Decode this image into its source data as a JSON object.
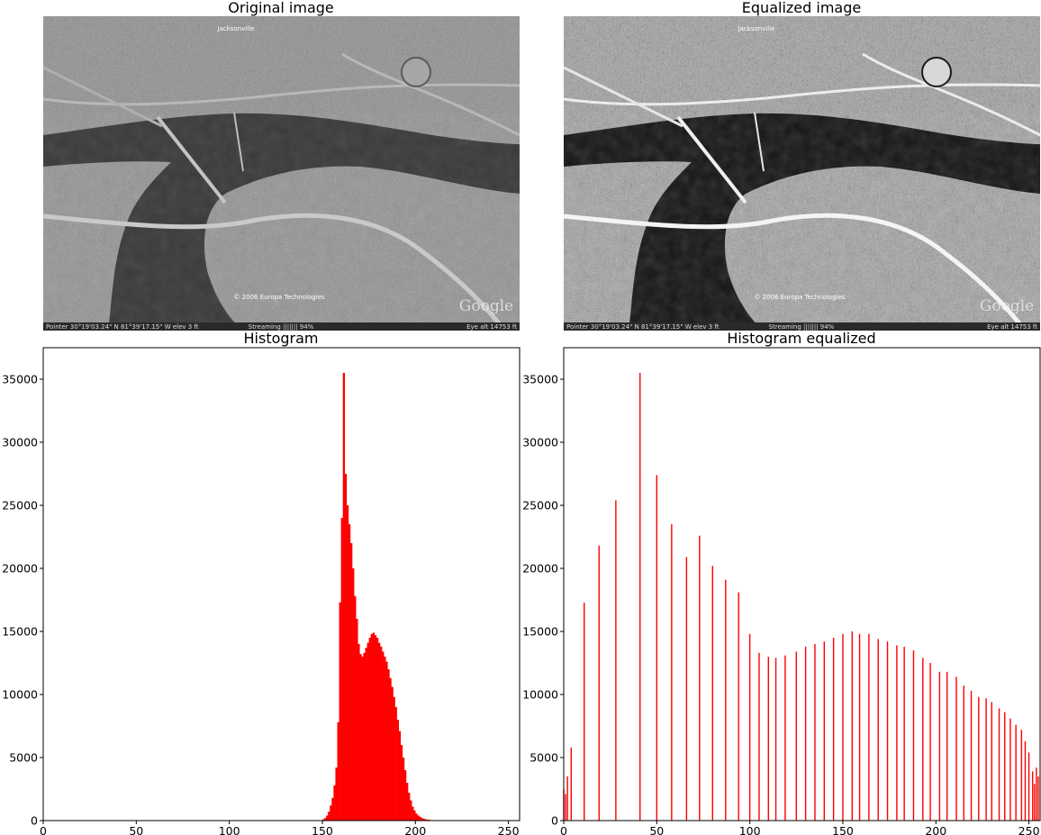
{
  "panels": {
    "original": {
      "title": "Original image",
      "overlay": {
        "city_label": "Jacksonville",
        "copyright": "© 2006 Europa Technologies",
        "brand": "Google",
        "status_pointer": "Pointer   30°19'03.24\"   N   81°39'17.15\"   W   elev   3 ft",
        "status_streaming": "Streaming |||||||   94%",
        "status_eye": "Eye alt   14753 ft"
      }
    },
    "equalized": {
      "title": "Equalized image",
      "overlay": {
        "city_label": "Jacksonville",
        "copyright": "© 2006 Europa Technologies",
        "brand": "Google",
        "status_pointer": "Pointer   30°19'03.24\"   N   81°39'17.15\"   W   elev   3 ft",
        "status_streaming": "Streaming |||||||   94%",
        "status_eye": "Eye alt   14753 ft"
      }
    }
  },
  "colors": {
    "bar": "#ff0000",
    "axes": "#000000",
    "background": "#ffffff"
  },
  "chart_data": [
    {
      "type": "bar",
      "title": "Histogram",
      "xlabel": "",
      "ylabel": "",
      "xlim": [
        0,
        256
      ],
      "ylim": [
        0,
        37500
      ],
      "xticks": [
        0,
        50,
        100,
        150,
        200,
        250
      ],
      "yticks": [
        0,
        5000,
        10000,
        15000,
        20000,
        25000,
        30000,
        35000
      ],
      "grid": false,
      "bar_width": 1,
      "x": [
        150,
        151,
        152,
        153,
        154,
        155,
        156,
        157,
        158,
        159,
        160,
        161,
        162,
        163,
        164,
        165,
        166,
        167,
        168,
        169,
        170,
        171,
        172,
        173,
        174,
        175,
        176,
        177,
        178,
        179,
        180,
        181,
        182,
        183,
        184,
        185,
        186,
        187,
        188,
        189,
        190,
        191,
        192,
        193,
        194,
        195,
        196,
        197,
        198,
        199,
        200,
        201,
        202,
        203,
        204,
        205,
        206,
        207,
        208,
        209,
        210,
        211,
        212,
        213,
        214,
        215,
        216,
        217
      ],
      "values": [
        100,
        200,
        400,
        700,
        1200,
        1800,
        2800,
        4200,
        7800,
        17300,
        24000,
        35500,
        27500,
        25000,
        23500,
        22000,
        20000,
        17800,
        16000,
        14000,
        13200,
        13000,
        13300,
        13700,
        14100,
        14500,
        14800,
        14900,
        14700,
        14500,
        14100,
        13800,
        13400,
        13000,
        12600,
        12000,
        11300,
        10600,
        9800,
        9000,
        8000,
        7100,
        6000,
        5000,
        4000,
        3000,
        2200,
        1600,
        1100,
        800,
        550,
        400,
        300,
        200,
        150,
        100,
        80,
        60,
        40,
        30,
        20,
        15,
        10,
        8,
        5,
        3,
        2,
        1
      ]
    },
    {
      "type": "bar",
      "title": "Histogram equalized",
      "xlabel": "",
      "ylabel": "",
      "xlim": [
        0,
        256
      ],
      "ylim": [
        0,
        37500
      ],
      "xticks": [
        0,
        50,
        100,
        150,
        200,
        250
      ],
      "yticks": [
        0,
        5000,
        10000,
        15000,
        20000,
        25000,
        30000,
        35000
      ],
      "grid": false,
      "bar_width": 1,
      "x": [
        0,
        1,
        2,
        4,
        11,
        19,
        28,
        41,
        50,
        58,
        66,
        73,
        80,
        87,
        94,
        100,
        105,
        110,
        114,
        119,
        125,
        130,
        135,
        140,
        145,
        150,
        155,
        159,
        164,
        169,
        174,
        179,
        183,
        188,
        193,
        197,
        202,
        206,
        211,
        215,
        219,
        223,
        227,
        230,
        234,
        237,
        240,
        243,
        246,
        248,
        250,
        252,
        253,
        254,
        255
      ],
      "values": [
        2500,
        2100,
        3500,
        5800,
        17300,
        21800,
        25400,
        35500,
        27400,
        23500,
        20900,
        22600,
        20200,
        19100,
        18100,
        14800,
        13300,
        13000,
        12900,
        13100,
        13400,
        13800,
        14000,
        14200,
        14500,
        14800,
        15000,
        14800,
        14800,
        14400,
        14200,
        13900,
        13800,
        13500,
        12900,
        12500,
        11800,
        11800,
        11400,
        10700,
        10300,
        9800,
        9700,
        9400,
        8900,
        8600,
        8100,
        7600,
        7200,
        6300,
        5400,
        3900,
        2900,
        4200,
        3500
      ]
    }
  ]
}
